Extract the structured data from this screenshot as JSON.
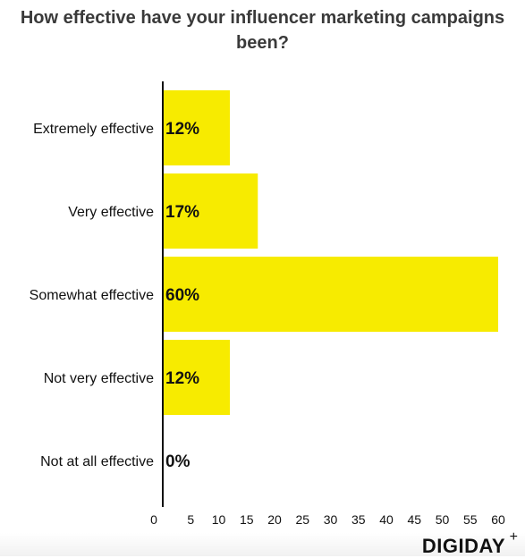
{
  "chart_data": {
    "type": "bar",
    "orientation": "horizontal",
    "title": "How effective have your influencer marketing campaigns been?",
    "categories": [
      "Extremely effective",
      "Very effective",
      "Somewhat effective",
      "Not very effective",
      "Not at all effective"
    ],
    "values": [
      12,
      17,
      60,
      12,
      0
    ],
    "value_labels": [
      "12%",
      "17%",
      "60%",
      "12%",
      "0%"
    ],
    "xlim": [
      0,
      61
    ],
    "xticks": [
      "0",
      "5",
      "10",
      "15",
      "20",
      "25",
      "30",
      "35",
      "40",
      "45",
      "50",
      "55",
      "60"
    ],
    "bar_color": "#f7eb00",
    "grid": false
  },
  "branding": {
    "logo_text": "DIGIDAY",
    "logo_mark": "+"
  }
}
